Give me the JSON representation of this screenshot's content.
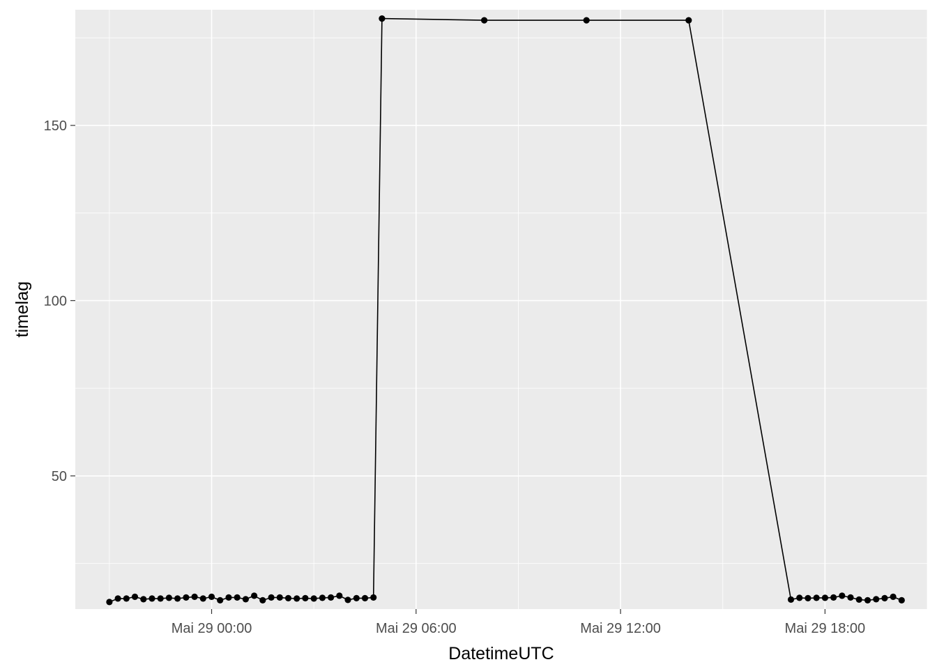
{
  "chart_data": {
    "type": "line",
    "xlabel": "DatetimeUTC",
    "ylabel": "timelag",
    "x_axis": {
      "type": "datetime",
      "range": [
        "2019-05-28 20:00",
        "2019-05-29 21:00"
      ],
      "ticks": [
        {
          "value": "2019-05-29 00:00",
          "label": "Mai 29 00:00"
        },
        {
          "value": "2019-05-29 06:00",
          "label": "Mai 29 06:00"
        },
        {
          "value": "2019-05-29 12:00",
          "label": "Mai 29 12:00"
        },
        {
          "value": "2019-05-29 18:00",
          "label": "Mai 29 18:00"
        }
      ],
      "minor_ticks": [
        "2019-05-28 21:00",
        "2019-05-29 03:00",
        "2019-05-29 09:00",
        "2019-05-29 15:00",
        "2019-05-29 21:00"
      ]
    },
    "y_axis": {
      "range": [
        12,
        183
      ],
      "ticks": [
        50,
        100,
        150
      ],
      "minor_ticks": [
        25,
        75,
        125,
        175
      ]
    },
    "grid": true,
    "legend": "none",
    "colors": {
      "panel": "#EBEBEB",
      "grid": "#FFFFFF",
      "series": "#000000",
      "tick_label": "#4D4D4D"
    },
    "series": [
      {
        "x": [
          "2019-05-28 21:00",
          "2019-05-28 21:15",
          "2019-05-28 21:30",
          "2019-05-28 21:45",
          "2019-05-28 22:00",
          "2019-05-28 22:15",
          "2019-05-28 22:30",
          "2019-05-28 22:45",
          "2019-05-28 23:00",
          "2019-05-28 23:15",
          "2019-05-28 23:30",
          "2019-05-28 23:45",
          "2019-05-29 00:00",
          "2019-05-29 00:15",
          "2019-05-29 00:30",
          "2019-05-29 00:45",
          "2019-05-29 01:00",
          "2019-05-29 01:15",
          "2019-05-29 01:30",
          "2019-05-29 01:45",
          "2019-05-29 02:00",
          "2019-05-29 02:15",
          "2019-05-29 02:30",
          "2019-05-29 02:45",
          "2019-05-29 03:00",
          "2019-05-29 03:15",
          "2019-05-29 03:30",
          "2019-05-29 03:45",
          "2019-05-29 04:00",
          "2019-05-29 04:15",
          "2019-05-29 04:30",
          "2019-05-29 04:45",
          "2019-05-29 05:00",
          "2019-05-29 08:00",
          "2019-05-29 11:00",
          "2019-05-29 14:00",
          "2019-05-29 17:00",
          "2019-05-29 17:15",
          "2019-05-29 17:30",
          "2019-05-29 17:45",
          "2019-05-29 18:00",
          "2019-05-29 18:15",
          "2019-05-29 18:30",
          "2019-05-29 18:45",
          "2019-05-29 19:00",
          "2019-05-29 19:15",
          "2019-05-29 19:30",
          "2019-05-29 19:45",
          "2019-05-29 20:00",
          "2019-05-29 20:15"
        ],
        "y": [
          14,
          15,
          15,
          15.5,
          14.8,
          15,
          15,
          15.2,
          15,
          15.3,
          15.5,
          15,
          15.5,
          14.5,
          15.3,
          15.3,
          14.8,
          15.8,
          14.5,
          15.3,
          15.3,
          15.1,
          15,
          15.1,
          15,
          15.2,
          15.3,
          15.8,
          14.6,
          15.1,
          15.1,
          15.3,
          180.5,
          180,
          180,
          180,
          14.7,
          15.2,
          15.1,
          15.2,
          15.2,
          15.3,
          15.8,
          15.3,
          14.7,
          14.5,
          14.8,
          15.1,
          15.5,
          14.5
        ]
      }
    ]
  }
}
